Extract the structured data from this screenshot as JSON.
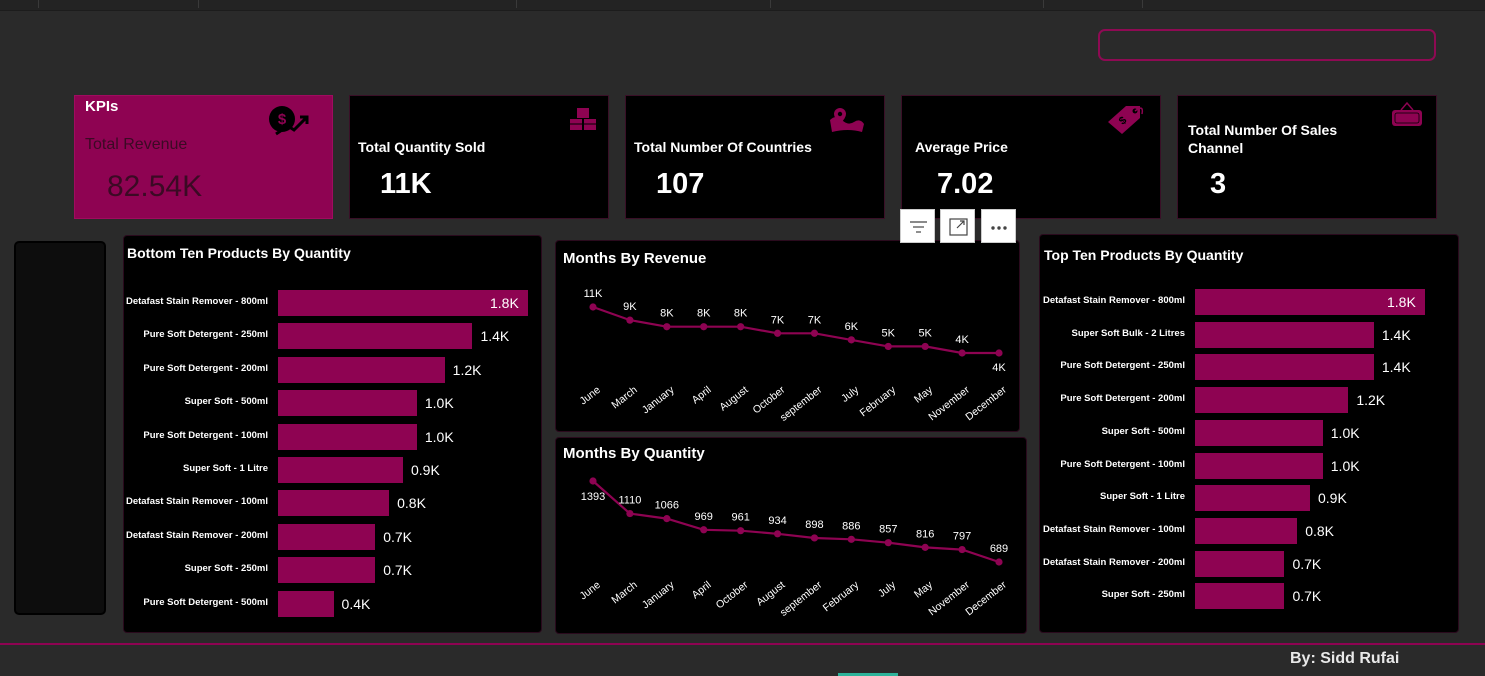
{
  "kpi_card": {
    "heading": "KPIs",
    "title": "Total Revenue",
    "value": "82.54K"
  },
  "cards": [
    {
      "title": "Total Quantity Sold",
      "value": "11K",
      "icon": "boxes-icon"
    },
    {
      "title": "Total Number Of Countries",
      "value": "107",
      "icon": "globe-pin-icon"
    },
    {
      "title": "Average Price",
      "value": "7.02",
      "icon": "price-tag-icon"
    },
    {
      "title": "Total Number Of Sales Channel",
      "value": "3",
      "icon": "sale-sign-icon"
    }
  ],
  "toolbar": {
    "filter_icon": "filter-icon",
    "focus_icon": "focus-mode-icon",
    "more_icon": "more-options-icon"
  },
  "byline": "By: Sidd Rufai",
  "colors": {
    "accent": "#8e0352",
    "panel_bg": "#000000",
    "page_bg": "#2a2a2a"
  },
  "chart_data": [
    {
      "id": "bottom-ten",
      "type": "bar",
      "orientation": "horizontal",
      "title": "Bottom Ten Products By Quantity",
      "categories": [
        "Detafast Stain Remover - 800ml",
        "Pure Soft Detergent - 250ml",
        "Pure Soft Detergent - 200ml",
        "Super Soft - 500ml",
        "Pure Soft Detergent - 100ml",
        "Super Soft - 1 Litre",
        "Detafast Stain Remover - 100ml",
        "Detafast Stain Remover - 200ml",
        "Super Soft - 250ml",
        "Pure Soft Detergent - 500ml"
      ],
      "values": [
        1800,
        1400,
        1200,
        1000,
        1000,
        900,
        800,
        700,
        700,
        400
      ],
      "labels": [
        "1.8K",
        "1.4K",
        "1.2K",
        "1.0K",
        "1.0K",
        "0.9K",
        "0.8K",
        "0.7K",
        "0.7K",
        "0.4K"
      ]
    },
    {
      "id": "months-revenue",
      "type": "line",
      "title": "Months By Revenue",
      "categories": [
        "June",
        "March",
        "January",
        "April",
        "August",
        "October",
        "september",
        "July",
        "February",
        "May",
        "November",
        "December"
      ],
      "values": [
        11000,
        9000,
        8000,
        8000,
        8000,
        7000,
        7000,
        6000,
        5000,
        5000,
        4000,
        4000
      ],
      "labels": [
        "11K",
        "9K",
        "8K",
        "8K",
        "8K",
        "7K",
        "7K",
        "6K",
        "5K",
        "5K",
        "4K",
        "4K"
      ]
    },
    {
      "id": "months-quantity",
      "type": "line",
      "title": "Months By Quantity",
      "categories": [
        "June",
        "March",
        "January",
        "April",
        "October",
        "August",
        "september",
        "February",
        "July",
        "May",
        "November",
        "December"
      ],
      "values": [
        1393,
        1110,
        1066,
        969,
        961,
        934,
        898,
        886,
        857,
        816,
        797,
        689
      ],
      "labels": [
        "1393",
        "1110",
        "1066",
        "969",
        "961",
        "934",
        "898",
        "886",
        "857",
        "816",
        "797",
        "689"
      ]
    },
    {
      "id": "top-ten",
      "type": "bar",
      "orientation": "horizontal",
      "title": "Top Ten Products By Quantity",
      "categories": [
        "Detafast Stain Remover - 800ml",
        "Super Soft Bulk - 2 Litres",
        "Pure Soft Detergent - 250ml",
        "Pure Soft Detergent - 200ml",
        "Super Soft - 500ml",
        "Pure Soft Detergent - 100ml",
        "Super Soft - 1 Litre",
        "Detafast Stain Remover - 100ml",
        "Detafast Stain Remover - 200ml",
        "Super Soft - 250ml"
      ],
      "values": [
        1800,
        1400,
        1400,
        1200,
        1000,
        1000,
        900,
        800,
        700,
        700
      ],
      "labels": [
        "1.8K",
        "1.4K",
        "1.4K",
        "1.2K",
        "1.0K",
        "1.0K",
        "0.9K",
        "0.8K",
        "0.7K",
        "0.7K"
      ]
    }
  ]
}
